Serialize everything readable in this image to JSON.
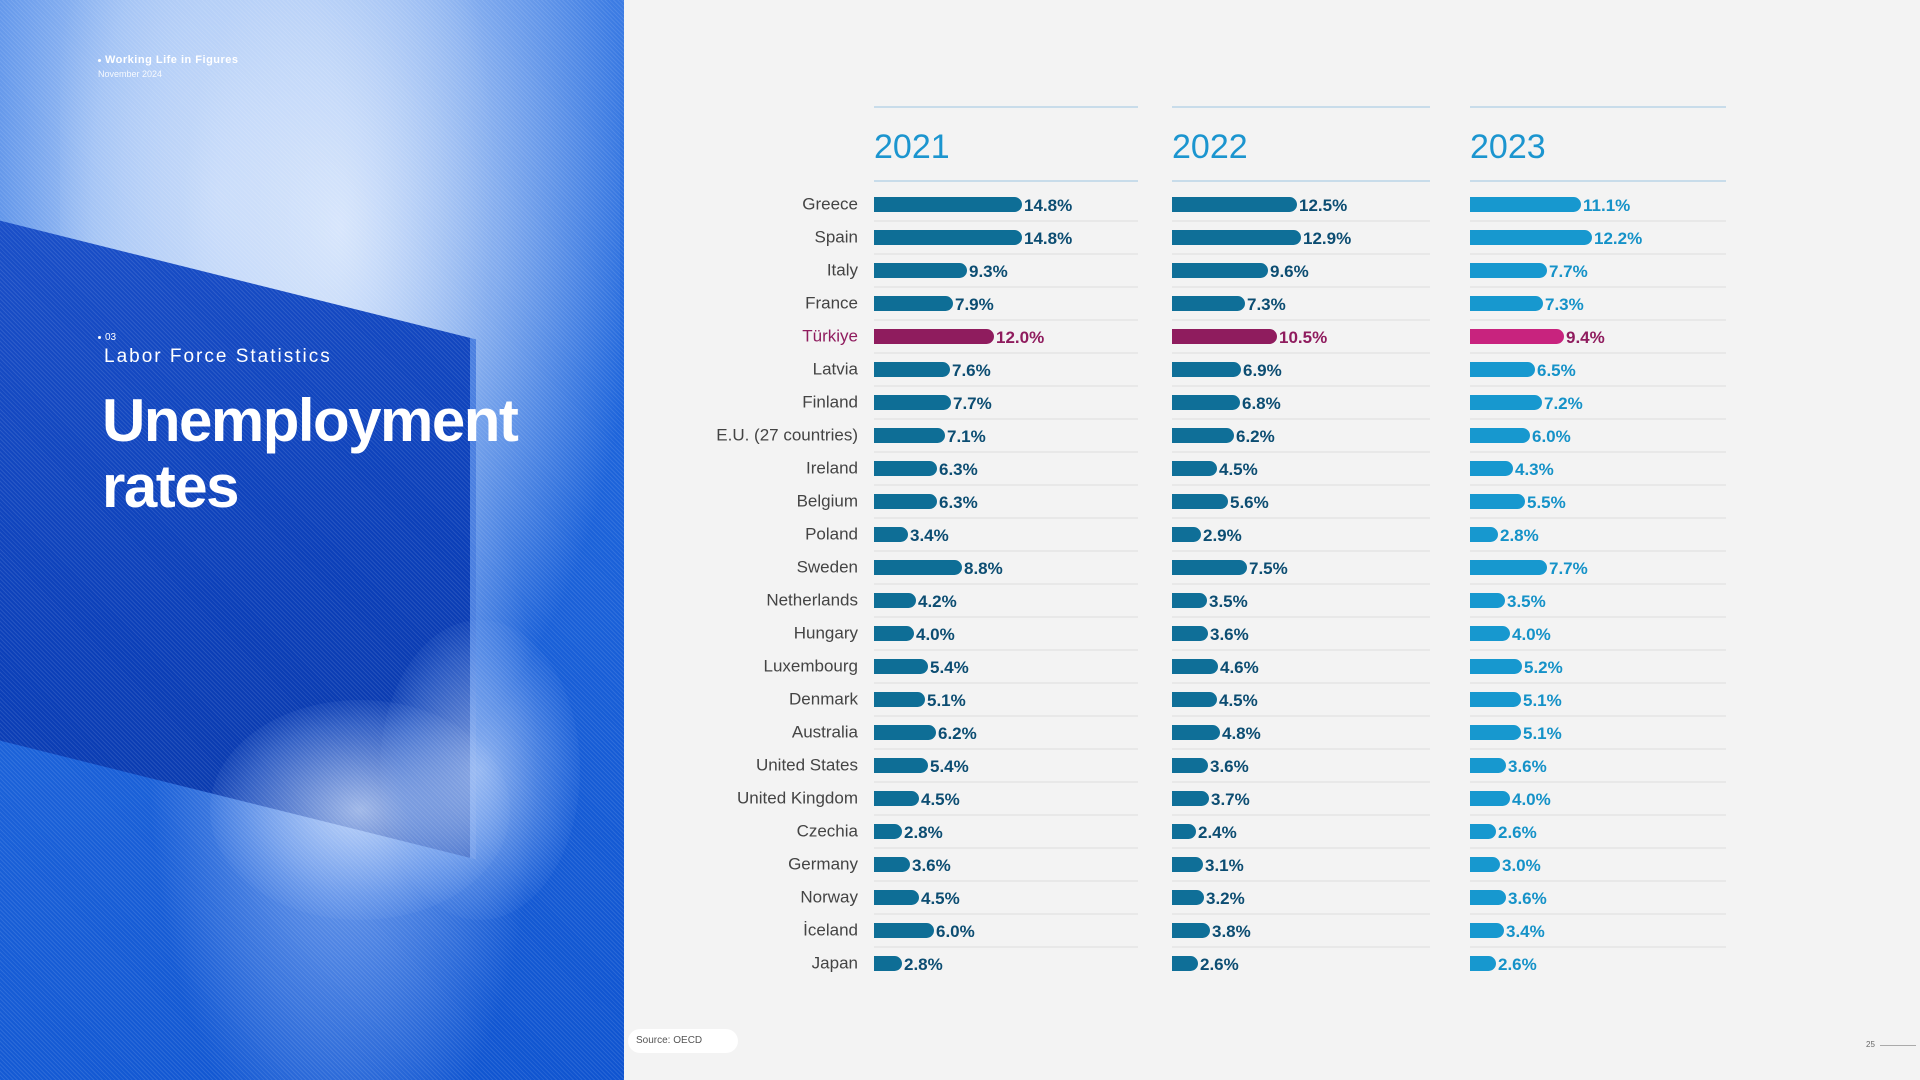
{
  "header": {
    "title": "Working Life in Figures",
    "date": "November 2024"
  },
  "section": {
    "number": "03",
    "label": "Labor Force Statistics"
  },
  "page_title": "Unemployment rates",
  "source": "Source: OECD",
  "page_number": "25",
  "colors": {
    "bar_2021": "#0e6e96",
    "bar_2022": "#0f6f98",
    "bar_2023": "#1798cf",
    "highlight_2021": "#8f1c5e",
    "highlight_2022": "#8f1c5e",
    "highlight_2023": "#c8237e",
    "label_2021": "#0c4d72",
    "label_2022": "#0c4d72",
    "label_2023": "#1592c8",
    "highlight_label": "#8f1c5e",
    "year_heading": "#1b95cf",
    "country_text": "#444444"
  },
  "chart_data": {
    "type": "bar",
    "orientation": "horizontal",
    "highlight_category": "Türkiye",
    "categories": [
      "Greece",
      "Spain",
      "Italy",
      "France",
      "Türkiye",
      "Latvia",
      "Finland",
      "E.U. (27 countries)",
      "Ireland",
      "Belgium",
      "Poland",
      "Sweden",
      "Netherlands",
      "Hungary",
      "Luxembourg",
      "Denmark",
      "Australia",
      "United States",
      "United Kingdom",
      "Czechia",
      "Germany",
      "Norway",
      "İceland",
      "Japan"
    ],
    "series": [
      {
        "name": "2021",
        "values": [
          14.8,
          14.8,
          9.3,
          7.9,
          12.0,
          7.6,
          7.7,
          7.1,
          6.3,
          6.3,
          3.4,
          8.8,
          4.2,
          4.0,
          5.4,
          5.1,
          6.2,
          5.4,
          4.5,
          2.8,
          3.6,
          4.5,
          6.0,
          2.8
        ],
        "labels": [
          "14.8%",
          "14.8%",
          "9.3%",
          "7.9%",
          "12.0%",
          "7.6%",
          "7.7%",
          "7.1%",
          "6.3%",
          "6.3%",
          "3.4%",
          "8.8%",
          "4.2%",
          "4.0%",
          "5.4%",
          "5.1%",
          "6.2%",
          "5.4%",
          "4.5%",
          "2.8%",
          "3.6%",
          "4.5%",
          "6.0%",
          "2.8%"
        ]
      },
      {
        "name": "2022",
        "values": [
          12.5,
          12.9,
          9.6,
          7.3,
          10.5,
          6.9,
          6.8,
          6.2,
          4.5,
          5.6,
          2.9,
          7.5,
          3.5,
          3.6,
          4.6,
          4.5,
          4.8,
          3.6,
          3.7,
          2.4,
          3.1,
          3.2,
          3.8,
          2.6
        ],
        "labels": [
          "12.5%",
          "12.9%",
          "9.6%",
          "7.3%",
          "10.5%",
          "6.9%",
          "6.8%",
          "6.2%",
          "4.5%",
          "5.6%",
          "2.9%",
          "7.5%",
          "3.5%",
          "3.6%",
          "4.6%",
          "4.5%",
          "4.8%",
          "3.6%",
          "3.7%",
          "2.4%",
          "3.1%",
          "3.2%",
          "3.8%",
          "2.6%"
        ]
      },
      {
        "name": "2023",
        "values": [
          11.1,
          12.2,
          7.7,
          7.3,
          9.4,
          6.5,
          7.2,
          6.0,
          4.3,
          5.5,
          2.8,
          7.7,
          3.5,
          4.0,
          5.2,
          5.1,
          5.1,
          3.6,
          4.0,
          2.6,
          3.0,
          3.6,
          3.4,
          2.6
        ],
        "labels": [
          "11.1%",
          "12.2%",
          "7.7%",
          "7.3%",
          "9.4%",
          "6.5%",
          "7.2%",
          "6.0%",
          "4.3%",
          "5.5%",
          "2.8%",
          "7.7%",
          "3.5%",
          "4.0%",
          "5.2%",
          "5.1%",
          "5.1%",
          "3.6%",
          "4.0%",
          "2.6%",
          "3.0%",
          "3.6%",
          "3.4%",
          "2.6%"
        ]
      }
    ],
    "value_unit": "%"
  }
}
